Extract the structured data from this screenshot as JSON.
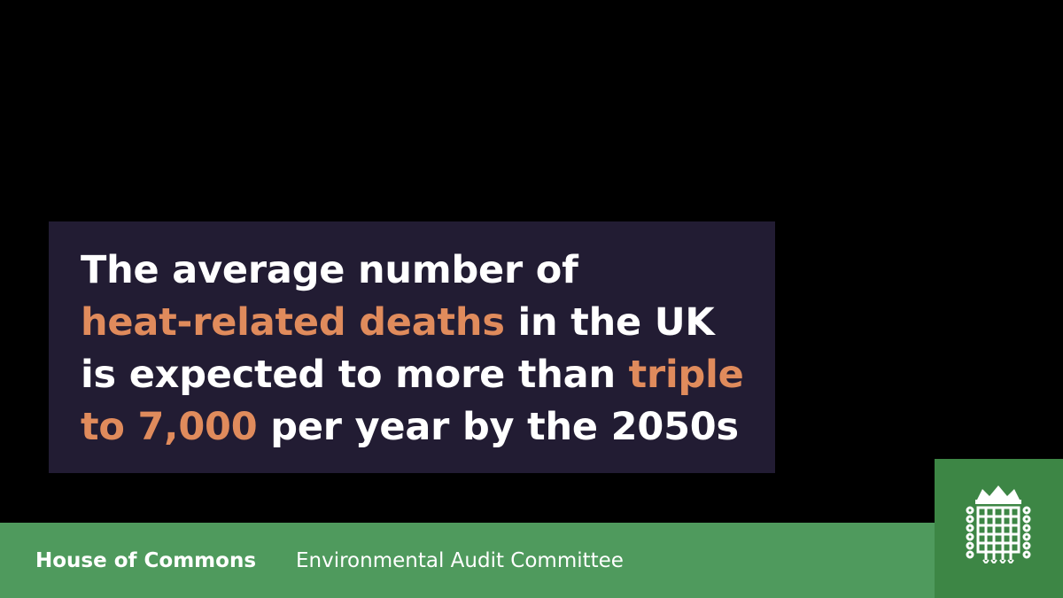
{
  "statement": {
    "line1": "The average number of",
    "line2_highlight": "heat-related deaths",
    "line2_rest": " in the UK",
    "line3_start": "is expected to more than ",
    "line3_highlight": "triple",
    "line4_highlight": "to 7,000",
    "line4_rest": " per year by the 2050s"
  },
  "footer": {
    "organization": "House of Commons",
    "committee": "Environmental Audit Committee"
  },
  "logo": {
    "icon": "portcullis-icon"
  },
  "colors": {
    "background": "#000000",
    "card": "#221c33",
    "highlight": "#e08b5c",
    "footer_bar": "#4f9a5d",
    "logo_box": "#3d8645",
    "text": "#ffffff"
  }
}
